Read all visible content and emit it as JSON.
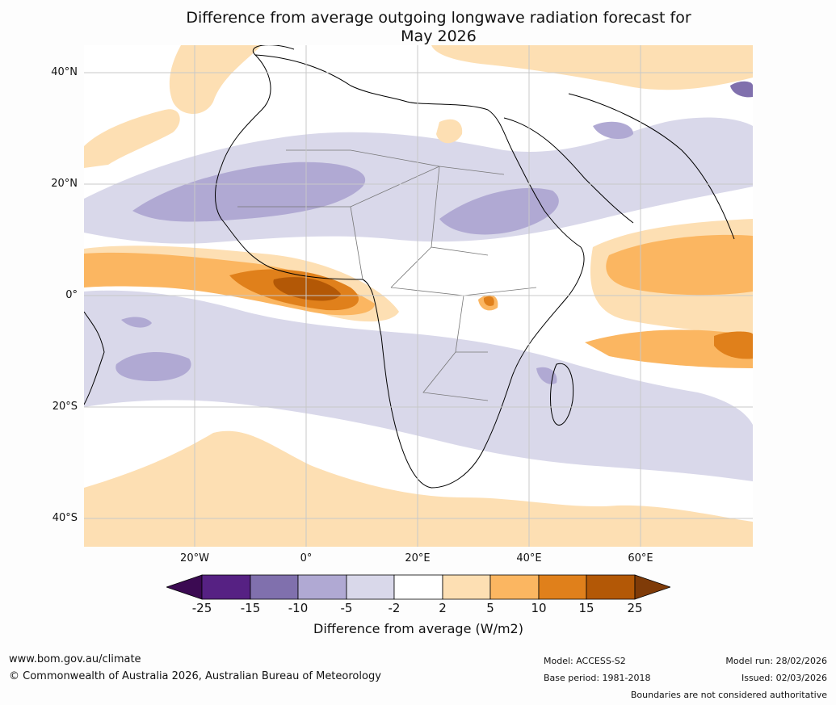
{
  "title": {
    "line1": "Difference from average outgoing longwave radiation forecast for",
    "line2": "May 2026"
  },
  "map": {
    "region": "Africa, Middle East and adjacent Atlantic and Indian Oceans",
    "lat_labels": [
      "40°N",
      "20°N",
      "0°",
      "20°S",
      "40°S"
    ],
    "lon_labels": [
      "20°W",
      "0°",
      "20°E",
      "40°E",
      "60°E"
    ]
  },
  "colorbar": {
    "title": "Difference from average (W/m2)",
    "ticks": [
      "-25",
      "-15",
      "-10",
      "-5",
      "-2",
      "2",
      "5",
      "10",
      "15",
      "25"
    ],
    "colors": {
      "below_-25": "#3b0a52",
      "-25_-15": "#562183",
      "-15_-10": "#8070ad",
      "-10_-5": "#b0a9d3",
      "-5_-2": "#d9d8ea",
      "-2_2": "#ffffff",
      "2_5": "#fddfb3",
      "5_10": "#fbb661",
      "10_15": "#e0801b",
      "15_25": "#b35806",
      "above_25": "#7f3b08"
    }
  },
  "footer": {
    "website": "www.bom.gov.au/climate",
    "copyright": "© Commonwealth of Australia 2026, Australian Bureau of Meteorology",
    "model": "Model: ACCESS-S2",
    "base_period": "Base period: 1981-2018",
    "model_run": "Model run: 28/02/2026",
    "issued": "Issued: 02/03/2026",
    "disclaimer": "Boundaries are not considered authoritative"
  }
}
